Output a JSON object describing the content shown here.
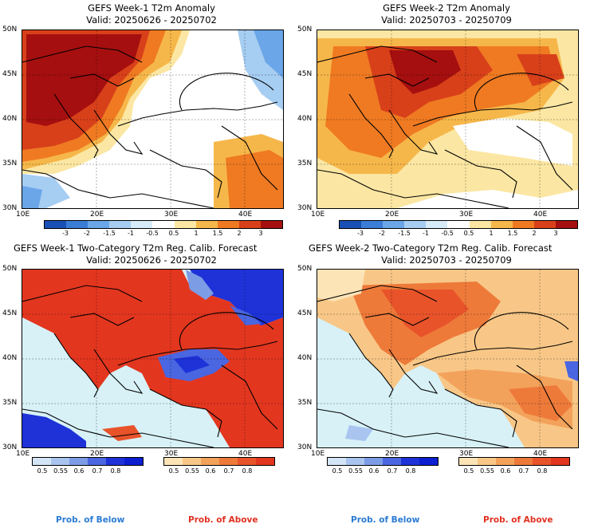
{
  "panels": [
    {
      "title": "GEFS Week-1 T2m Anomaly",
      "valid": "Valid: 20250626 - 20250702"
    },
    {
      "title": "GEFS Week-2 T2m Anomaly",
      "valid": "Valid: 20250703 - 20250709"
    },
    {
      "title": "GEFS Week-1 Two-Category T2m Reg. Calib. Forecast",
      "valid": "Valid: 20250626 - 20250702"
    },
    {
      "title": "GEFS Week-2 Two-Category T2m Reg. Calib. Forecast",
      "valid": "Valid: 20250703 - 20250709"
    }
  ],
  "axes": {
    "lat_labels": [
      "50N",
      "45N",
      "40N",
      "35N",
      "30N"
    ],
    "lon_labels": [
      "10E",
      "20E",
      "30E",
      "40E"
    ]
  },
  "anomaly_scale": {
    "labels": [
      "-3",
      "-2",
      "-1.5",
      "-1",
      "-0.5",
      "0.5",
      "1",
      "1.5",
      "2",
      "3"
    ],
    "colors": [
      "#1a4fb5",
      "#3a7dd6",
      "#6aa6e8",
      "#a6cdf2",
      "#d7ebf8",
      "#ffffff",
      "#fbe7a3",
      "#f6b74a",
      "#ef7a22",
      "#d8401a",
      "#a50f0f"
    ]
  },
  "prob_below_scale": {
    "labels": [
      "0.5",
      "0.55",
      "0.6",
      "0.7",
      "0.8"
    ],
    "colors": [
      "#d3e5f6",
      "#a9c5ef",
      "#7d9ce6",
      "#4a66e0",
      "#1e32d8",
      "#0b1ed0"
    ]
  },
  "prob_above_scale": {
    "labels": [
      "0.5",
      "0.55",
      "0.6",
      "0.7",
      "0.8"
    ],
    "colors": [
      "#fce4b6",
      "#f8c787",
      "#f3a25b",
      "#ee7a3a",
      "#e8532a",
      "#e3361f"
    ]
  },
  "footer": {
    "below": "Prob. of Below",
    "above": "Prob. of Above"
  },
  "colors": {
    "below_text": "#2a7bd4",
    "above_text": "#e03020",
    "sea": "#d7f1f7"
  }
}
